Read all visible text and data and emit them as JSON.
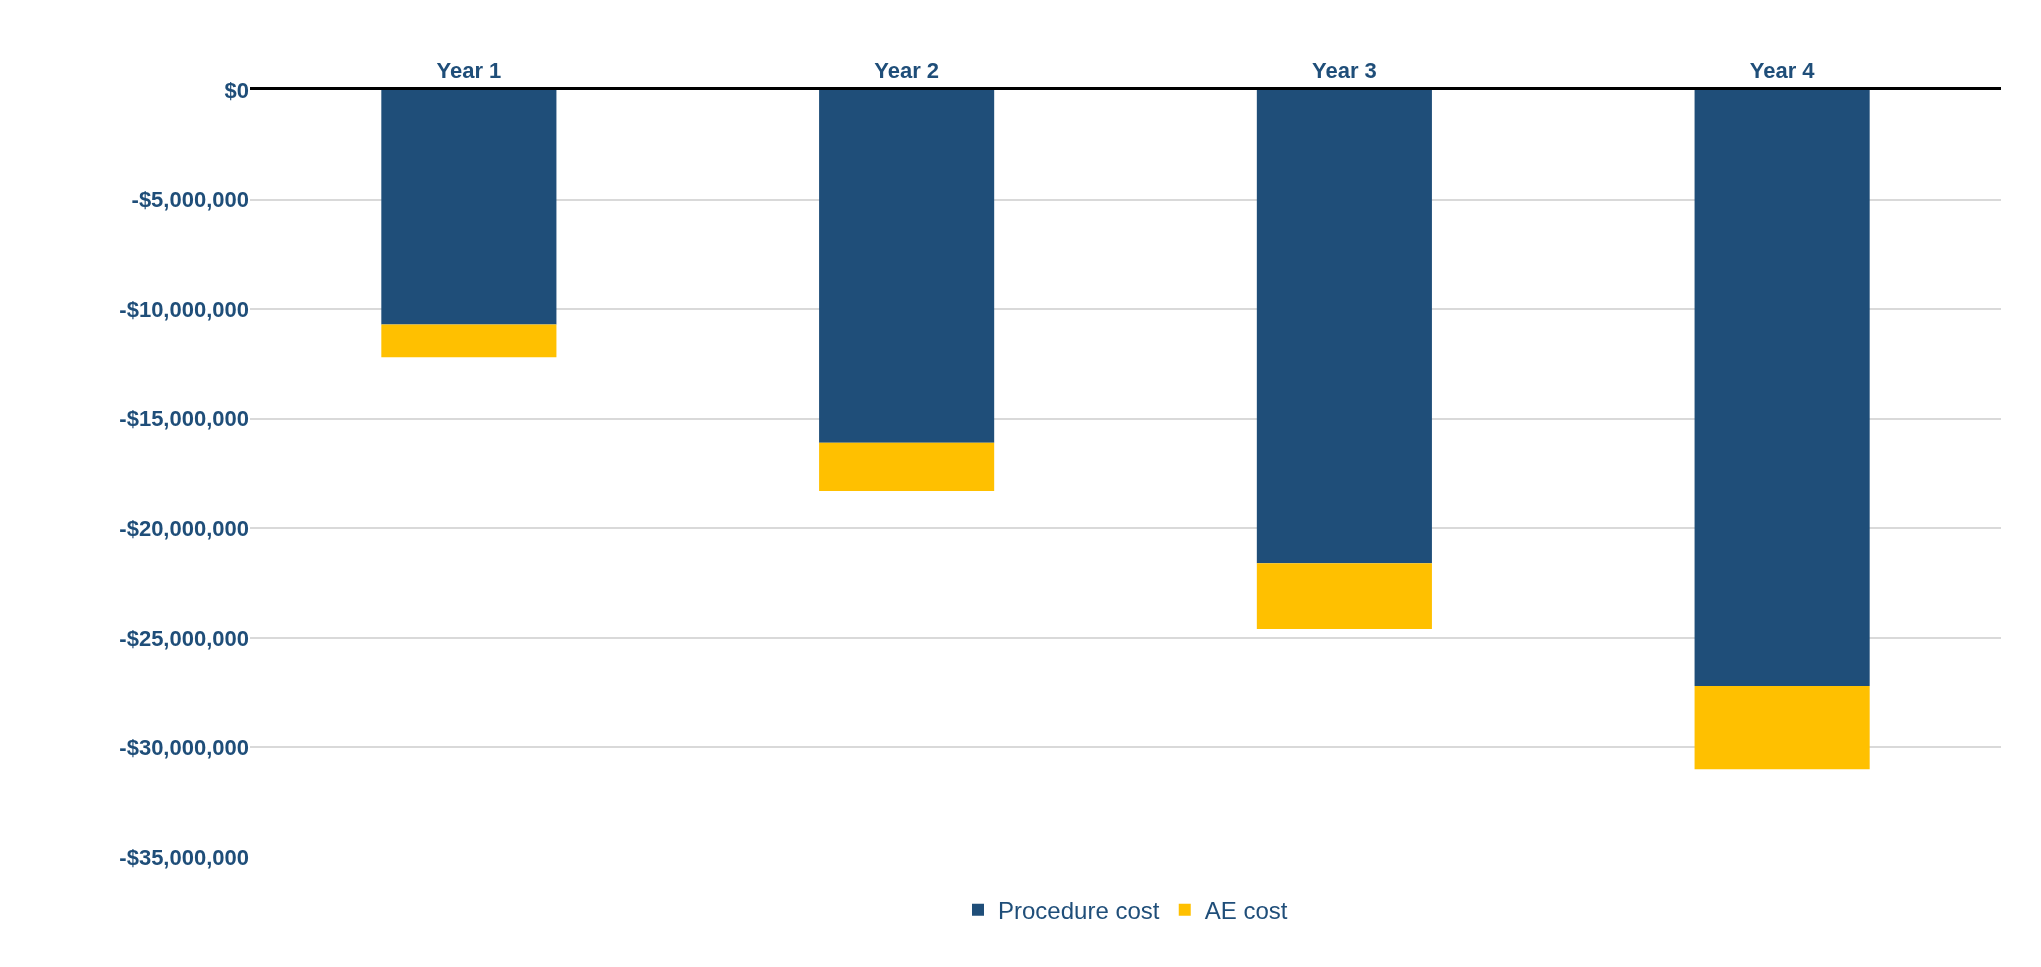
{
  "chart_data": {
    "type": "bar",
    "stacked": true,
    "categories": [
      "Year 1",
      "Year 2",
      "Year 3",
      "Year 4"
    ],
    "series": [
      {
        "name": "Procedure cost",
        "color": "#1f4e79",
        "values": [
          -10700000,
          -16100000,
          -21600000,
          -27200000
        ]
      },
      {
        "name": "AE cost",
        "color": "#ffc000",
        "values": [
          -1500000,
          -2200000,
          -3000000,
          -3800000
        ]
      }
    ],
    "ylim": [
      -35000000,
      0
    ],
    "yticks": [
      {
        "value": 0,
        "label": "$0"
      },
      {
        "value": -5000000,
        "label": "-$5,000,000"
      },
      {
        "value": -10000000,
        "label": "-$10,000,000"
      },
      {
        "value": -15000000,
        "label": "-$15,000,000"
      },
      {
        "value": -20000000,
        "label": "-$20,000,000"
      },
      {
        "value": -25000000,
        "label": "-$25,000,000"
      },
      {
        "value": -30000000,
        "label": "-$30,000,000"
      },
      {
        "value": -35000000,
        "label": "-$35,000,000"
      }
    ],
    "grid": "y",
    "legend": "bottom"
  }
}
